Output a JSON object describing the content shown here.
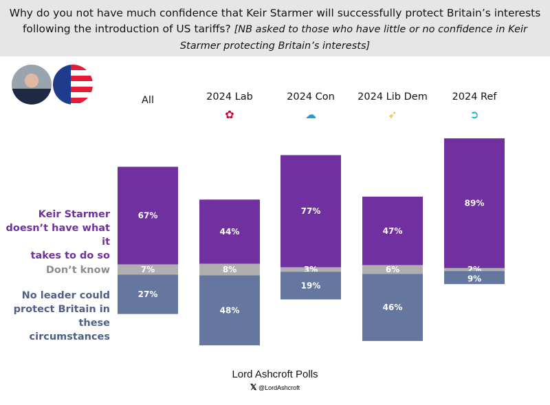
{
  "title": {
    "main": "Why do you not have much confidence that Keir Starmer will successfully protect Britain’s interests following the introduction of US tariffs?",
    "note": "[NB asked to those who have little or no confidence in Keir Starmer protecting Britain’s interests]"
  },
  "chart_data": {
    "type": "bar",
    "stacked": true,
    "categories": [
      "All",
      "2024 Lab",
      "2024 Con",
      "2024 Lib Dem",
      "2024 Ref"
    ],
    "series": [
      {
        "name": "Keir Starmer doesn’t have what it takes to do so",
        "color": "#7030a0",
        "values": [
          67,
          44,
          77,
          47,
          89
        ],
        "labels": [
          "67%",
          "44%",
          "77%",
          "47%",
          "89%"
        ]
      },
      {
        "name": "Don’t know",
        "color": "#b0aeae",
        "values": [
          7,
          8,
          3,
          6,
          2
        ],
        "labels": [
          "7%",
          "8%",
          "3%",
          "6%",
          "2%"
        ]
      },
      {
        "name": "No leader could protect Britain in these circumstances",
        "color": "#65779f",
        "values": [
          27,
          48,
          19,
          46,
          9
        ],
        "labels": [
          "27%",
          "48%",
          "19%",
          "46%",
          "9%"
        ]
      }
    ],
    "series_label_lines": [
      [
        "Keir Starmer",
        "doesn’t have what it",
        "takes to do so"
      ],
      [
        "Don’t know"
      ],
      [
        "No leader could",
        "protect Britain in",
        "these circumstances"
      ]
    ],
    "label_colors": [
      "#7030a0",
      "#8c8c8c",
      "#4f5f86"
    ]
  },
  "footer": {
    "brand": "Lord Ashcroft Polls",
    "handle": "@LordAshcroft"
  }
}
